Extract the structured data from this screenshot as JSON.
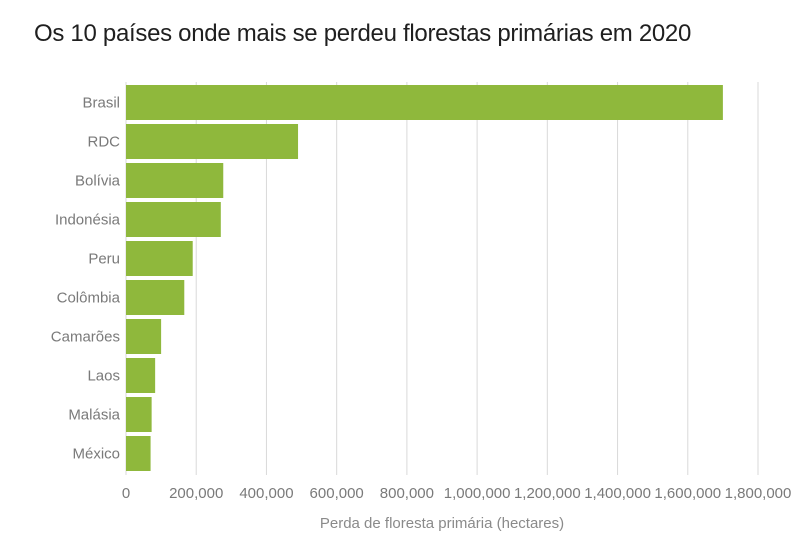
{
  "chart_data": {
    "type": "bar",
    "orientation": "horizontal",
    "title": "Os 10 países onde mais se perdeu florestas primárias em 2020",
    "xlabel": "Perda de floresta primária (hectares)",
    "ylabel": "",
    "categories": [
      "Brasil",
      "RDC",
      "Bolívia",
      "Indonésia",
      "Peru",
      "Colômbia",
      "Camarões",
      "Laos",
      "Malásia",
      "México"
    ],
    "values": [
      1700000,
      490000,
      277000,
      270000,
      190000,
      166000,
      100000,
      83000,
      73000,
      70000
    ],
    "xlim": [
      0,
      1800000
    ],
    "ticks": [
      "0",
      "200,000",
      "400,000",
      "600,000",
      "800,000",
      "1,000,000",
      "1,200,000",
      "1,400,000",
      "1,600,000",
      "1,800,000"
    ],
    "tick_values": [
      0,
      200000,
      400000,
      600000,
      800000,
      1000000,
      1200000,
      1400000,
      1600000,
      1800000
    ],
    "grid": true,
    "bar_color": "#8fb83c",
    "grid_color": "#d9d9d9"
  }
}
